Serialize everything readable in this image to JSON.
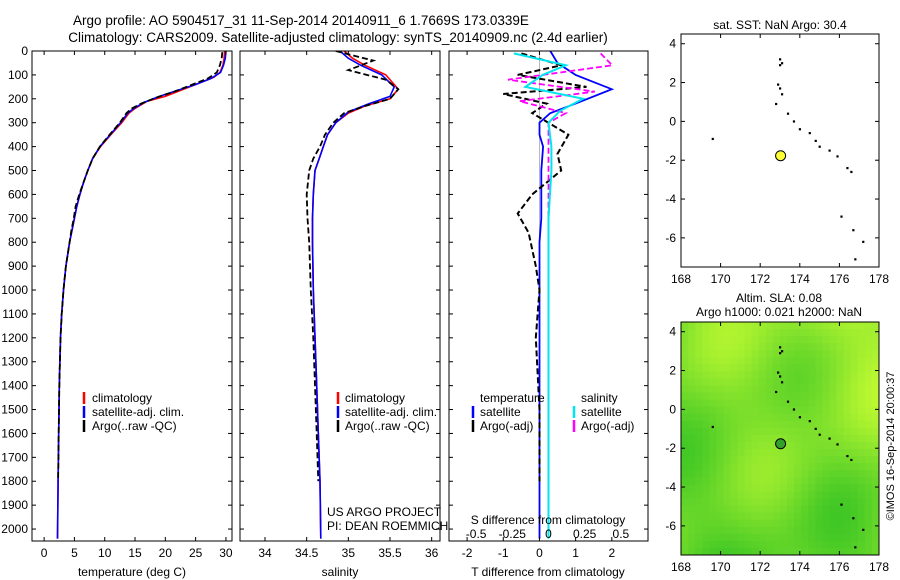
{
  "header": {
    "title_line1": "Argo profile: AO 5904517_31 11-Sep-2014 20140911_6 1.7669S 173.0339E",
    "title_line2": "Climatology: CARS2009. Satellite-adjusted climatology: synTS_20140909.nc (2.4d earlier)"
  },
  "annotations": {
    "project_line1": "US ARGO PROJECT",
    "project_line2": "PI: DEAN ROEMMICH",
    "footer_stamp": "©IMOS 16-Sep-2014 20:00:37"
  },
  "colors": {
    "climatology": "#ff0000",
    "satellite": "#0000ff",
    "argo": "#000000",
    "sal_satellite": "#00e5ee",
    "sal_argo": "#ff00ff",
    "map_marker": "#ffff33",
    "map_marker_sla": "#33a02c",
    "sla_low": "#22bb22",
    "sla_high": "#ccff33"
  },
  "chart_data": [
    {
      "type": "line",
      "id": "temperature",
      "xlabel": "temperature (deg C)",
      "xlim": [
        -2,
        31
      ],
      "xticks": [
        0,
        5,
        10,
        15,
        20,
        25,
        30
      ],
      "ylim": [
        0,
        2050
      ],
      "yticks": [
        0,
        100,
        200,
        300,
        400,
        500,
        600,
        700,
        800,
        900,
        1000,
        1100,
        1200,
        1300,
        1400,
        1500,
        1600,
        1700,
        1800,
        1900,
        2000
      ],
      "legend": [
        "climatology",
        "satellite-adj. clim.",
        "Argo(..raw -QC)"
      ],
      "series": [
        {
          "name": "climatology",
          "x": [
            29.8,
            29.7,
            29.5,
            29.0,
            28.0,
            26.0,
            23.0,
            20.0,
            17.0,
            15.0,
            14.0,
            12.8,
            11.0,
            9.3,
            8.0,
            7.2,
            6.5,
            5.9,
            5.4,
            5.0,
            4.6,
            4.2,
            3.6,
            3.2,
            2.9,
            2.7,
            2.5,
            2.4,
            2.3,
            2.2
          ],
          "y": [
            0,
            30,
            60,
            90,
            110,
            130,
            160,
            190,
            210,
            240,
            260,
            300,
            350,
            400,
            450,
            500,
            550,
            600,
            650,
            700,
            750,
            800,
            900,
            1000,
            1100,
            1200,
            1400,
            1600,
            1800,
            2040
          ]
        },
        {
          "name": "satellite-adj. clim.",
          "x": [
            30.0,
            29.9,
            29.6,
            29.1,
            27.5,
            25.0,
            22.0,
            19.0,
            16.5,
            14.8,
            13.8,
            12.6,
            10.9,
            9.2,
            8.0,
            7.2,
            6.5,
            5.9,
            5.4,
            5.0,
            4.6,
            4.2,
            3.6,
            3.2,
            2.9,
            2.7,
            2.5,
            2.4,
            2.3,
            2.2
          ],
          "y": [
            0,
            30,
            60,
            90,
            115,
            140,
            165,
            190,
            215,
            240,
            260,
            300,
            350,
            400,
            450,
            500,
            550,
            600,
            650,
            700,
            750,
            800,
            900,
            1000,
            1100,
            1200,
            1400,
            1600,
            1800,
            2040
          ]
        },
        {
          "name": "Argo(..raw -QC)",
          "x": [
            29.4,
            29.3,
            29.0,
            28.5,
            27.0,
            24.5,
            21.5,
            18.5,
            16.0,
            14.5,
            13.6,
            12.5,
            10.8,
            9.2,
            8.0,
            7.2,
            6.5,
            5.8,
            5.2,
            4.9,
            4.5,
            4.2,
            3.6,
            3.2,
            2.9,
            2.7,
            2.5,
            2.4,
            2.3
          ],
          "y": [
            5,
            30,
            60,
            90,
            115,
            140,
            170,
            195,
            220,
            240,
            260,
            300,
            350,
            400,
            450,
            500,
            550,
            600,
            650,
            700,
            750,
            800,
            900,
            1000,
            1100,
            1200,
            1400,
            1600,
            1800
          ]
        }
      ]
    },
    {
      "type": "line",
      "id": "salinity",
      "xlabel": "salinity",
      "xlim": [
        33.7,
        36.1
      ],
      "xticks": [
        34,
        34.5,
        35,
        35.5,
        36
      ],
      "ylim": [
        0,
        2050
      ],
      "legend": [
        "climatology",
        "satellite-adj. clim.",
        "Argo(..raw -QC)"
      ],
      "series": [
        {
          "name": "climatology",
          "x": [
            34.95,
            35.05,
            35.2,
            35.45,
            35.6,
            35.5,
            35.2,
            35.0,
            34.85,
            34.75,
            34.7,
            34.65,
            34.6,
            34.58,
            34.57,
            34.57,
            34.58,
            34.6,
            34.62,
            34.64,
            34.66,
            34.67
          ],
          "y": [
            0,
            30,
            60,
            100,
            160,
            200,
            230,
            260,
            300,
            350,
            400,
            450,
            500,
            600,
            700,
            800,
            1000,
            1200,
            1400,
            1600,
            1800,
            2040
          ]
        },
        {
          "name": "satellite-adj. clim.",
          "x": [
            34.9,
            35.0,
            35.15,
            35.4,
            35.55,
            35.5,
            35.25,
            35.0,
            34.85,
            34.75,
            34.7,
            34.65,
            34.6,
            34.58,
            34.57,
            34.57,
            34.58,
            34.6,
            34.62,
            34.64,
            34.66,
            34.67
          ],
          "y": [
            0,
            30,
            60,
            100,
            150,
            190,
            220,
            255,
            300,
            350,
            400,
            450,
            500,
            600,
            700,
            800,
            1000,
            1200,
            1400,
            1600,
            1800,
            2040
          ]
        },
        {
          "name": "Argo(..raw -QC)",
          "x": [
            34.85,
            35.3,
            35.0,
            35.45,
            35.6,
            35.5,
            35.2,
            34.95,
            34.82,
            34.72,
            34.66,
            34.58,
            34.53,
            34.5,
            34.51,
            34.53,
            34.55,
            34.58,
            34.6,
            34.62,
            34.64
          ],
          "y": [
            0,
            40,
            80,
            120,
            160,
            200,
            230,
            260,
            300,
            350,
            400,
            450,
            500,
            600,
            700,
            800,
            1000,
            1200,
            1400,
            1600,
            1800
          ]
        }
      ]
    },
    {
      "type": "line",
      "id": "difference",
      "xlabel": "T difference from climatology",
      "xlabel_top": "S difference from climatology",
      "xlim": [
        -2.5,
        3
      ],
      "xticks": [
        -2,
        -1,
        0,
        1,
        2
      ],
      "xticks_top": [
        -0.5,
        -0.25,
        0,
        0.25,
        0.5
      ],
      "xticks_top_labels": [
        "-0.5",
        "-0.25",
        "0",
        "0.25",
        "0.5"
      ],
      "ylim": [
        0,
        2050
      ],
      "legend_header": [
        "temperature",
        "salinity"
      ],
      "legend": [
        "satellite",
        "Argo(-adj)",
        "satellite",
        "Argo(-adj)"
      ],
      "series": [
        {
          "name": "satellite",
          "x": [
            0.3,
            0.5,
            1.0,
            2.0,
            1.0,
            0.3,
            0.0,
            0.0,
            0.1,
            0.05,
            0.05,
            0.05,
            0.0,
            0.0,
            0.0,
            0.0,
            0.0,
            0.0,
            0.0
          ],
          "y": [
            0,
            50,
            100,
            160,
            220,
            260,
            300,
            350,
            400,
            500,
            600,
            700,
            800,
            900,
            1000,
            1200,
            1500,
            1800,
            2040
          ]
        },
        {
          "name": "Argo(-adj)",
          "x": [
            -0.5,
            0.6,
            -0.6,
            1.3,
            -1.0,
            0.2,
            -0.2,
            0.8,
            0.5,
            0.6,
            -0.2,
            -0.6,
            -0.3,
            -0.1,
            0.0,
            -0.1,
            0.0,
            0.0
          ],
          "y": [
            10,
            60,
            100,
            150,
            180,
            220,
            260,
            350,
            430,
            500,
            600,
            680,
            760,
            900,
            1000,
            1200,
            1500,
            1800
          ]
        },
        {
          "name": "satellite",
          "x": [
            -0.6,
            0.3,
            -0.1,
            -0.4,
            0.6,
            0.2,
            0.0,
            0.05,
            0.05,
            0.0,
            0.0,
            0.0,
            0.0,
            0.0
          ],
          "y": [
            10,
            60,
            100,
            150,
            200,
            250,
            300,
            400,
            500,
            700,
            1000,
            1300,
            1600,
            2040
          ]
        },
        {
          "name": "Argo(-adj)",
          "x": [
            0.9,
            1.1,
            -0.7,
            0.8,
            -0.5,
            0.3,
            0.0,
            0.0,
            0.0,
            0.0,
            0.0
          ],
          "y": [
            10,
            60,
            120,
            170,
            210,
            260,
            300,
            500,
            800,
            1200,
            1700
          ]
        }
      ]
    },
    {
      "type": "scatter",
      "id": "sst-map",
      "title": "sat. SST: NaN Argo: 30.4",
      "xlim": [
        168,
        178
      ],
      "xticks": [
        168,
        170,
        172,
        174,
        176,
        178
      ],
      "ylim": [
        -7.5,
        4.5
      ],
      "yticks": [
        4,
        2,
        0,
        -2,
        -4,
        -6
      ],
      "series": [
        {
          "name": "Argo",
          "x": [
            173.03
          ],
          "y": [
            -1.77
          ]
        }
      ]
    },
    {
      "type": "heatmap",
      "id": "sla-map",
      "title_line1": "Altim. SLA: 0.08",
      "title_line2": "Argo h1000: 0.021 h2000: NaN",
      "xlim": [
        168,
        178
      ],
      "xticks": [
        168,
        170,
        172,
        174,
        176,
        178
      ],
      "ylim": [
        -7.5,
        4.5
      ],
      "yticks": [
        4,
        2,
        0,
        -2,
        -4,
        -6
      ],
      "series": [
        {
          "name": "Argo",
          "x": [
            173.03
          ],
          "y": [
            -1.77
          ]
        }
      ]
    }
  ]
}
